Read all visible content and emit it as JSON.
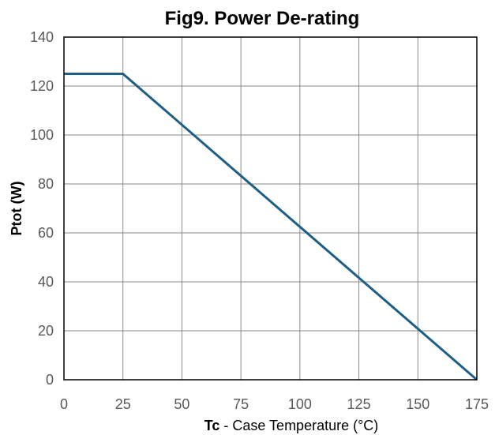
{
  "chart_data": {
    "type": "line",
    "title": "Fig9. Power De-rating",
    "xlabel_bold": "Tc",
    "xlabel_rest": " - Case Temperature (°C)",
    "ylabel": "Ptot (W)",
    "xlim": [
      0,
      175
    ],
    "ylim": [
      0,
      140
    ],
    "xticks": [
      0,
      25,
      50,
      75,
      100,
      125,
      150,
      175
    ],
    "yticks": [
      0,
      20,
      40,
      60,
      80,
      100,
      120,
      140
    ],
    "grid": true,
    "series": [
      {
        "x": [
          0,
          25,
          175
        ],
        "y": [
          125,
          125,
          0
        ],
        "color": "#1F5F86"
      }
    ]
  }
}
